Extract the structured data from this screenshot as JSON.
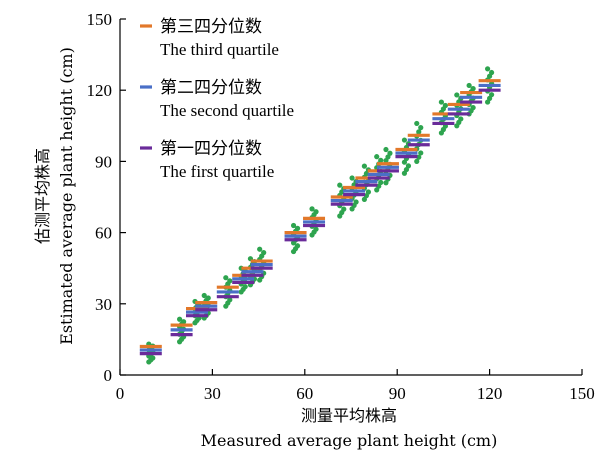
{
  "chart_data": {
    "type": "scatter",
    "xlabel_cn": "测量平均株高",
    "xlabel": "Measured average plant height (cm)",
    "ylabel_cn": "估测平均株高",
    "ylabel": "Estimated average plant height (cm)",
    "xlim": [
      0,
      150
    ],
    "ylim": [
      0,
      150
    ],
    "xticks": [
      "0",
      "30",
      "60",
      "90",
      "120",
      "150"
    ],
    "yticks": [
      "0",
      "30",
      "60",
      "90",
      "120",
      "150"
    ],
    "legend_position": "top-left",
    "legend": [
      {
        "label_cn": "第三四分位数",
        "label_en": "The third quartile",
        "color": "#e2782a"
      },
      {
        "label_cn": "第二四分位数",
        "label_en": "The second quartile",
        "color": "#4a6fc7"
      },
      {
        "label_cn": "第一四分位数",
        "label_en": "The first quartile",
        "color": "#6a2b9a"
      }
    ],
    "point_color": "#2ea44f",
    "groups": [
      {
        "x": 10,
        "q3": 12,
        "q2": 10.5,
        "q1": 9,
        "min": 5.5,
        "max": 13
      },
      {
        "x": 20,
        "q3": 21,
        "q2": 19,
        "q1": 17,
        "min": 14,
        "max": 23.5
      },
      {
        "x": 25,
        "q3": 28,
        "q2": 26.5,
        "q1": 25,
        "min": 22,
        "max": 31
      },
      {
        "x": 28,
        "q3": 30.5,
        "q2": 29,
        "q1": 27.5,
        "min": 24,
        "max": 33.5
      },
      {
        "x": 35,
        "q3": 37,
        "q2": 35,
        "q1": 33,
        "min": 29,
        "max": 41
      },
      {
        "x": 40,
        "q3": 42,
        "q2": 40.5,
        "q1": 39,
        "min": 35,
        "max": 45
      },
      {
        "x": 43,
        "q3": 45,
        "q2": 43.5,
        "q1": 42,
        "min": 38,
        "max": 49
      },
      {
        "x": 46,
        "q3": 48,
        "q2": 46.5,
        "q1": 45,
        "min": 40,
        "max": 53
      },
      {
        "x": 57,
        "q3": 60,
        "q2": 58.5,
        "q1": 57,
        "min": 52,
        "max": 63
      },
      {
        "x": 63,
        "q3": 66,
        "q2": 64.5,
        "q1": 63,
        "min": 59,
        "max": 70
      },
      {
        "x": 72,
        "q3": 75,
        "q2": 73.5,
        "q1": 72,
        "min": 67,
        "max": 80
      },
      {
        "x": 76,
        "q3": 79,
        "q2": 77.5,
        "q1": 76,
        "min": 70,
        "max": 83
      },
      {
        "x": 80,
        "q3": 83,
        "q2": 81.5,
        "q1": 80,
        "min": 74,
        "max": 88
      },
      {
        "x": 84,
        "q3": 86,
        "q2": 84.5,
        "q1": 83,
        "min": 78,
        "max": 92
      },
      {
        "x": 87,
        "q3": 89,
        "q2": 87.5,
        "q1": 86,
        "min": 81,
        "max": 95
      },
      {
        "x": 93,
        "q3": 95,
        "q2": 93.5,
        "q1": 92,
        "min": 85,
        "max": 99
      },
      {
        "x": 97,
        "q3": 101,
        "q2": 99,
        "q1": 97,
        "min": 90,
        "max": 106
      },
      {
        "x": 105,
        "q3": 110,
        "q2": 108,
        "q1": 106,
        "min": 102,
        "max": 115
      },
      {
        "x": 110,
        "q3": 114,
        "q2": 112,
        "q1": 110,
        "min": 105,
        "max": 118
      },
      {
        "x": 114,
        "q3": 119,
        "q2": 117,
        "q1": 115,
        "min": 110,
        "max": 122
      },
      {
        "x": 120,
        "q3": 124,
        "q2": 122,
        "q1": 120,
        "min": 115,
        "max": 129
      }
    ]
  }
}
